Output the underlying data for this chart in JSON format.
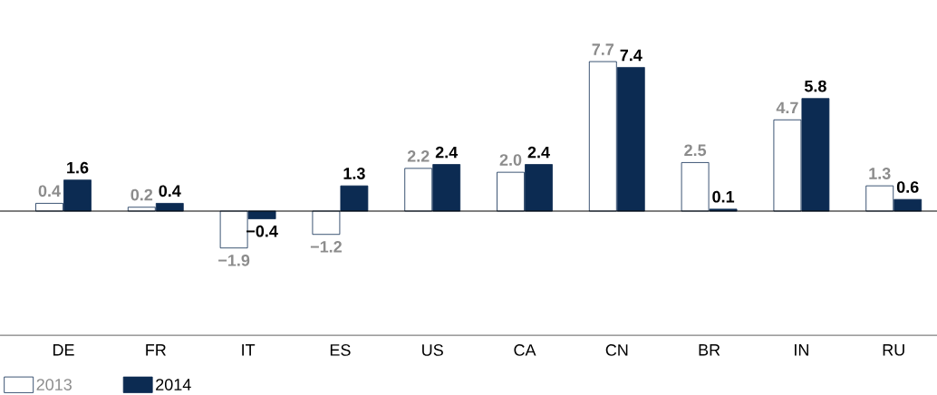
{
  "chart_data": {
    "type": "bar",
    "categories": [
      "DE",
      "FR",
      "IT",
      "ES",
      "US",
      "CA",
      "CN",
      "BR",
      "IN",
      "RU"
    ],
    "series": [
      {
        "name": "2013",
        "color": "#ffffff",
        "values": [
          0.4,
          0.2,
          -1.9,
          -1.2,
          2.2,
          2.0,
          7.7,
          2.5,
          4.7,
          1.3
        ],
        "value_labels": [
          "0.4",
          "0.2",
          "−1.9",
          "−1.2",
          "2.2",
          "2.0",
          "7.7",
          "2.5",
          "4.7",
          "1.3"
        ]
      },
      {
        "name": "2014",
        "color": "#0c2b52",
        "values": [
          1.6,
          0.4,
          -0.4,
          1.3,
          2.4,
          2.4,
          7.4,
          0.1,
          5.8,
          0.6
        ],
        "value_labels": [
          "1.6",
          "0.4",
          "−0.4",
          "1.3",
          "2.4",
          "2.4",
          "7.4",
          "0.1",
          "5.8",
          "0.6"
        ]
      }
    ],
    "legend": "bottom left"
  }
}
